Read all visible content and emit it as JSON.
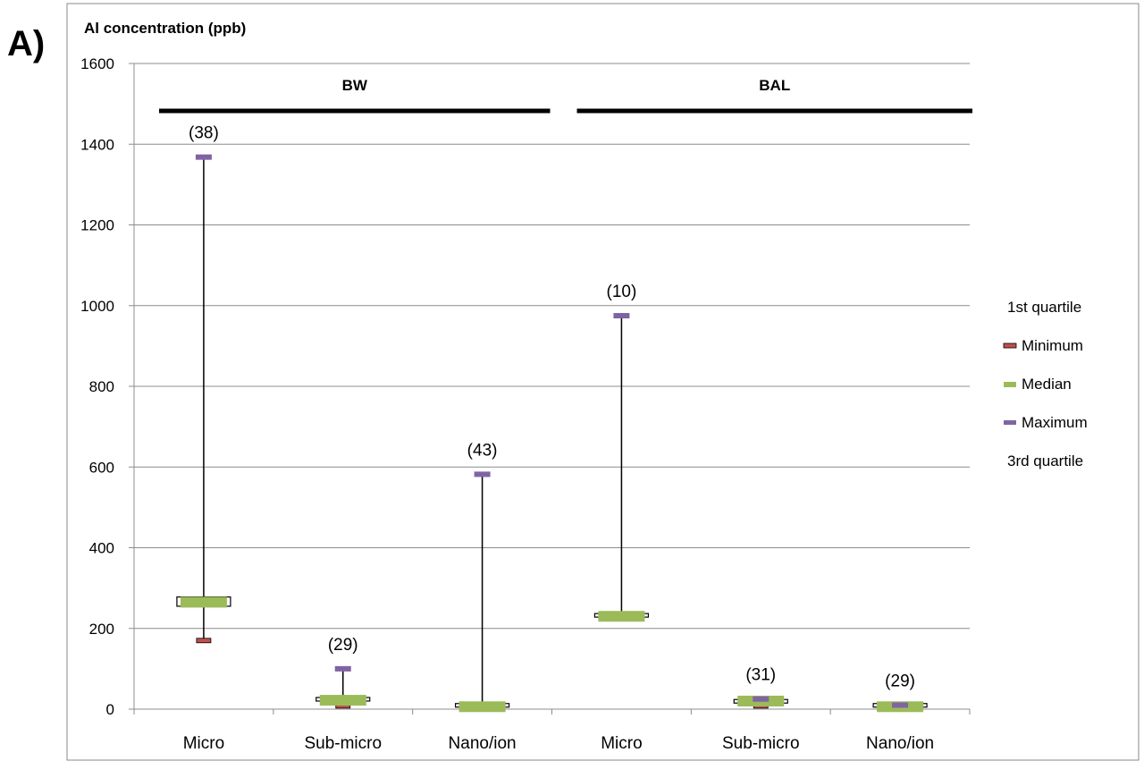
{
  "chart_data": {
    "type": "box",
    "panel_label": "A)",
    "ylabel": "Al concentration (ppb)",
    "ylim": [
      0,
      1600
    ],
    "yticks": [
      0,
      200,
      400,
      600,
      800,
      1000,
      1200,
      1400,
      1600
    ],
    "grid": true,
    "legend_position": "right",
    "groups": [
      {
        "label": "BW",
        "categories": [
          0,
          1,
          2
        ]
      },
      {
        "label": "BAL",
        "categories": [
          3,
          4,
          5
        ]
      }
    ],
    "categories": [
      "Micro",
      "Sub-micro",
      "Nano/ion",
      "Micro",
      "Sub-micro",
      "Nano/ion"
    ],
    "counts": [
      "(38)",
      "(29)",
      "(43)",
      "(10)",
      "(31)",
      "(29)"
    ],
    "series": [
      {
        "name": "1st quartile",
        "color": "#ffffff",
        "values": [
          255,
          20,
          5,
          228,
          15,
          5
        ]
      },
      {
        "name": "Minimum",
        "color": "#c0504d",
        "values": [
          170,
          8,
          4,
          228,
          8,
          5
        ]
      },
      {
        "name": "Median",
        "color": "#9bbb59",
        "values": [
          265,
          22,
          6,
          230,
          20,
          6
        ]
      },
      {
        "name": "Maximum",
        "color": "#8064a2",
        "values": [
          1368,
          100,
          582,
          975,
          25,
          10
        ]
      },
      {
        "name": "3rd quartile",
        "color": "#ffffff",
        "values": [
          278,
          25,
          8,
          232,
          22,
          8
        ]
      }
    ]
  }
}
